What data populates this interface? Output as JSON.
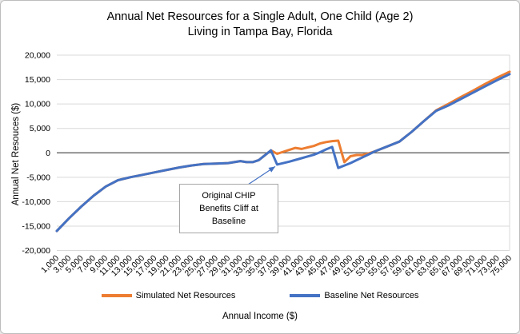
{
  "chart_data": {
    "type": "line",
    "title_lines": [
      "Annual Net Resources for a Single Adult, One Child (Age 2)",
      "Living in Tampa Bay, Florida"
    ],
    "title": "Annual Net Resources for a Single Adult, One Child (Age 2) Living in Tampa Bay, Florida",
    "xlabel": "Annual Income ($)",
    "ylabel": "Annual Net Resouces ($)",
    "xlim": [
      1000,
      75000
    ],
    "ylim": [
      -20000,
      20000
    ],
    "ytick_step": 5000,
    "grid": true,
    "legend_position": "bottom",
    "colors": {
      "gridline": "#d9d9d9",
      "zero_line": "#6e6e6e"
    },
    "xticks": [
      1000,
      3000,
      5000,
      7000,
      9000,
      11000,
      13000,
      15000,
      17000,
      19000,
      21000,
      23000,
      25000,
      27000,
      29000,
      31000,
      33000,
      35000,
      37000,
      39000,
      41000,
      43000,
      45000,
      47000,
      49000,
      51000,
      53000,
      55000,
      57000,
      59000,
      61000,
      63000,
      65000,
      67000,
      69000,
      71000,
      73000,
      75000
    ],
    "series": [
      {
        "name": "Simulated Net Resources",
        "color": "#ED7D31",
        "points": [
          [
            1000,
            -16000
          ],
          [
            3000,
            -13400
          ],
          [
            5000,
            -11000
          ],
          [
            7000,
            -8800
          ],
          [
            9000,
            -6900
          ],
          [
            11000,
            -5600
          ],
          [
            13000,
            -5000
          ],
          [
            15000,
            -4500
          ],
          [
            17000,
            -4000
          ],
          [
            19000,
            -3500
          ],
          [
            21000,
            -3000
          ],
          [
            23000,
            -2600
          ],
          [
            25000,
            -2300
          ],
          [
            27000,
            -2200
          ],
          [
            29000,
            -2100
          ],
          [
            31000,
            -1700
          ],
          [
            32000,
            -1900
          ],
          [
            33000,
            -1900
          ],
          [
            34000,
            -1500
          ],
          [
            35000,
            -500
          ],
          [
            36000,
            500
          ],
          [
            37000,
            -200
          ],
          [
            38000,
            200
          ],
          [
            39000,
            600
          ],
          [
            40000,
            1000
          ],
          [
            41000,
            800
          ],
          [
            42000,
            1100
          ],
          [
            43000,
            1400
          ],
          [
            44000,
            1900
          ],
          [
            45000,
            2200
          ],
          [
            46000,
            2400
          ],
          [
            47000,
            2500
          ],
          [
            48000,
            -1900
          ],
          [
            49000,
            -700
          ],
          [
            50000,
            -450
          ],
          [
            51000,
            -450
          ],
          [
            52000,
            -100
          ],
          [
            53000,
            300
          ],
          [
            55000,
            1300
          ],
          [
            57000,
            2300
          ],
          [
            59000,
            4300
          ],
          [
            61000,
            6500
          ],
          [
            63000,
            8700
          ],
          [
            65000,
            10000
          ],
          [
            67000,
            11400
          ],
          [
            69000,
            12700
          ],
          [
            71000,
            14100
          ],
          [
            73000,
            15400
          ],
          [
            75000,
            16600
          ]
        ]
      },
      {
        "name": "Baseline Net Resources",
        "color": "#4472C4",
        "points": [
          [
            1000,
            -16000
          ],
          [
            3000,
            -13400
          ],
          [
            5000,
            -11000
          ],
          [
            7000,
            -8800
          ],
          [
            9000,
            -6900
          ],
          [
            11000,
            -5600
          ],
          [
            13000,
            -5000
          ],
          [
            15000,
            -4500
          ],
          [
            17000,
            -4000
          ],
          [
            19000,
            -3500
          ],
          [
            21000,
            -3000
          ],
          [
            23000,
            -2600
          ],
          [
            25000,
            -2300
          ],
          [
            27000,
            -2200
          ],
          [
            29000,
            -2100
          ],
          [
            31000,
            -1700
          ],
          [
            32000,
            -1900
          ],
          [
            33000,
            -1900
          ],
          [
            34000,
            -1500
          ],
          [
            35000,
            -500
          ],
          [
            36000,
            500
          ],
          [
            37000,
            -2400
          ],
          [
            39000,
            -1800
          ],
          [
            41000,
            -1100
          ],
          [
            43000,
            -400
          ],
          [
            44000,
            100
          ],
          [
            45000,
            700
          ],
          [
            46000,
            1200
          ],
          [
            47000,
            -3100
          ],
          [
            48000,
            -2600
          ],
          [
            49000,
            -2100
          ],
          [
            50000,
            -1500
          ],
          [
            51000,
            -900
          ],
          [
            52000,
            -300
          ],
          [
            53000,
            300
          ],
          [
            55000,
            1300
          ],
          [
            57000,
            2300
          ],
          [
            59000,
            4300
          ],
          [
            61000,
            6500
          ],
          [
            63000,
            8600
          ],
          [
            65000,
            9700
          ],
          [
            67000,
            11000
          ],
          [
            69000,
            12300
          ],
          [
            71000,
            13600
          ],
          [
            73000,
            14900
          ],
          [
            75000,
            16100
          ]
        ]
      }
    ],
    "annotation": {
      "text": "Original CHIP\nBenefits Cliff at\nBaseline",
      "points_to": {
        "x": 36700,
        "y": -2800
      }
    }
  }
}
